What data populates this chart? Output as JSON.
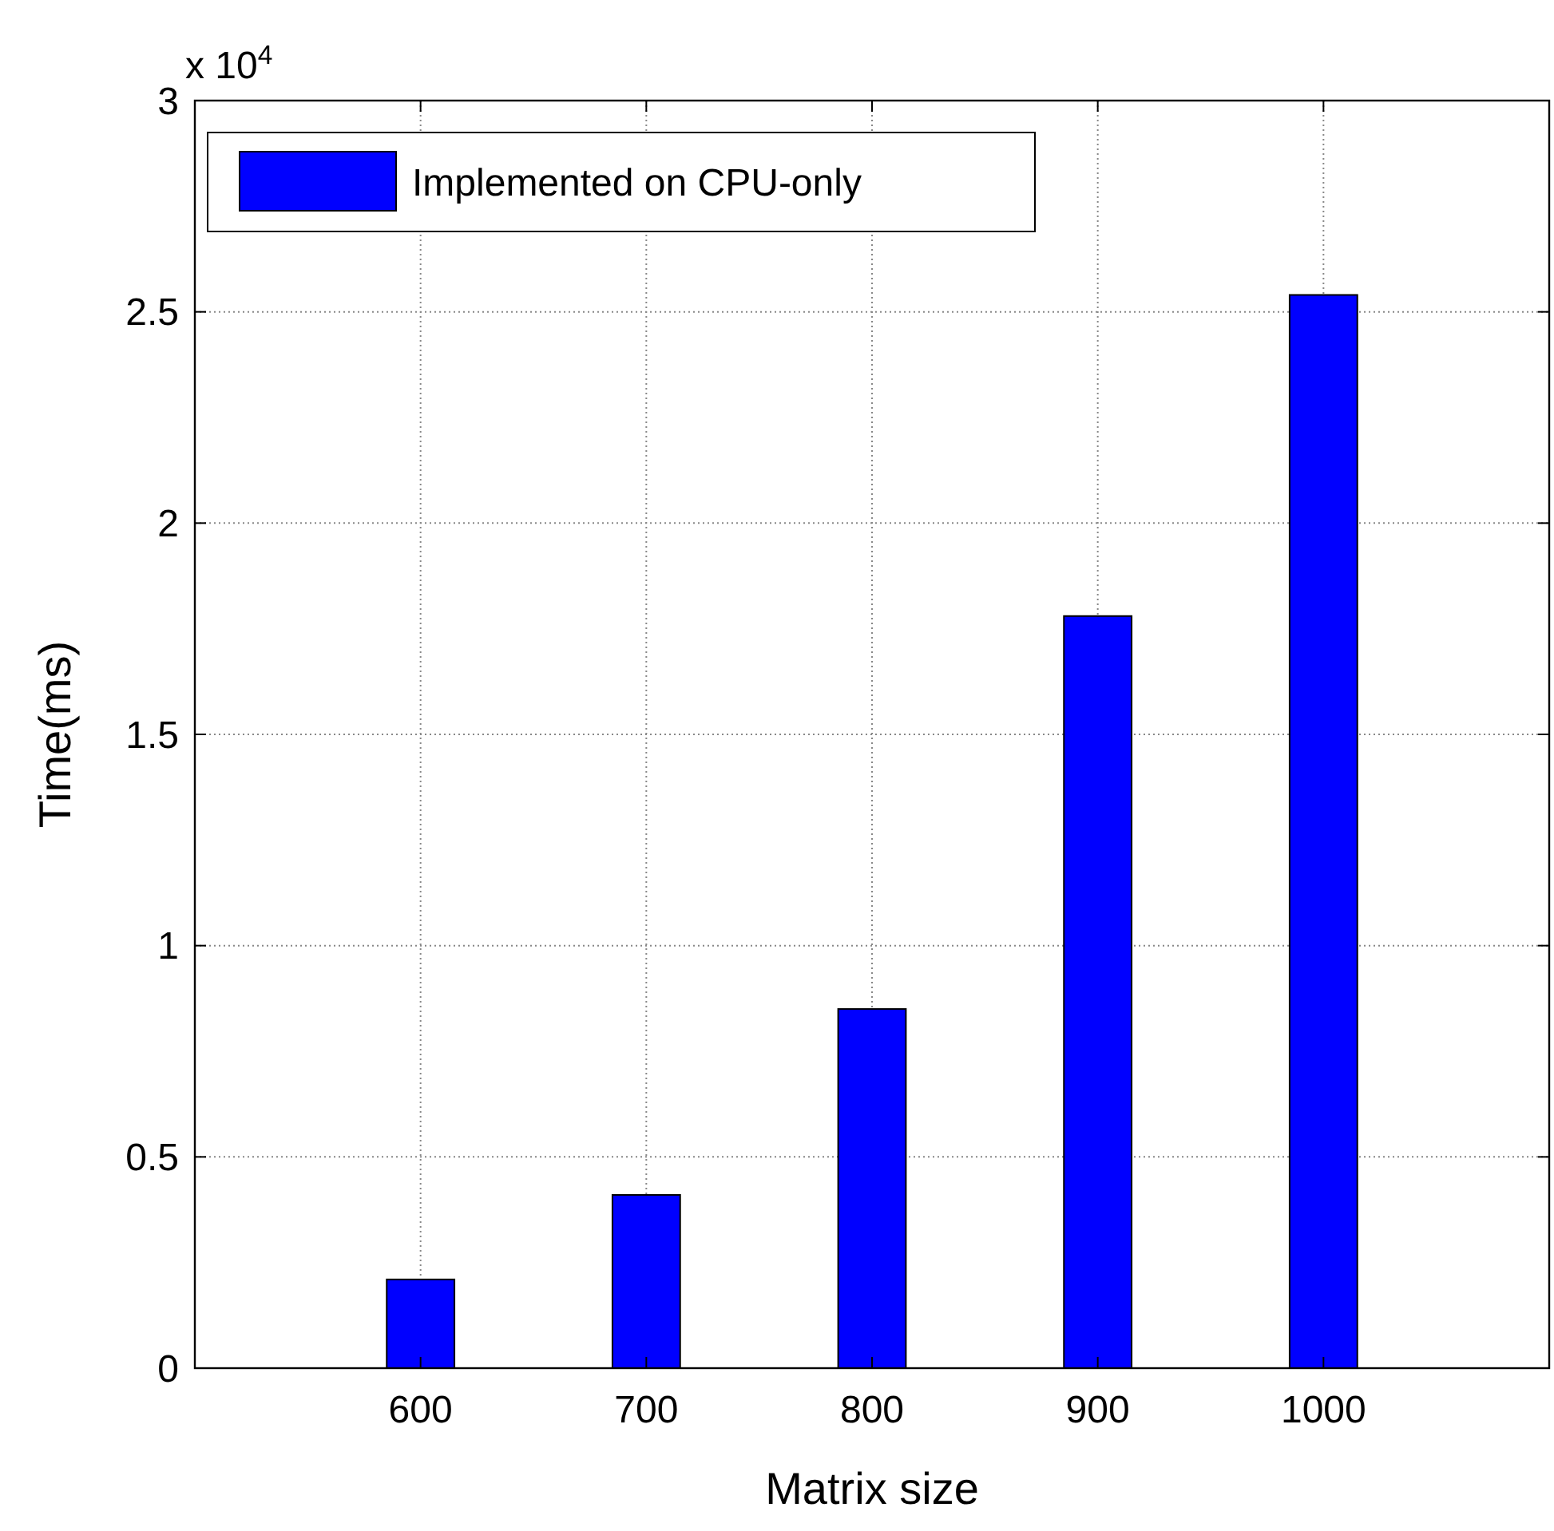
{
  "chart_data": {
    "type": "bar",
    "xlabel": "Matrix size",
    "ylabel": "Time(ms)",
    "annotations": [
      "x 10$^{4}$"
    ],
    "x": [
      600,
      700,
      800,
      900,
      1000
    ],
    "series": [
      {
        "name": "Implemented on CPU-only",
        "color": "#0000ff",
        "values": [
          0.21,
          0.41,
          0.85,
          1.78,
          2.54
        ]
      }
    ],
    "xlim": [
      500,
      1100
    ],
    "xticks": [
      600,
      700,
      800,
      900,
      1000
    ],
    "ylim": [
      0,
      3
    ],
    "yticks": [
      0,
      0.5,
      1,
      1.5,
      2,
      2.5,
      3
    ],
    "grid": true,
    "legend": "top left"
  }
}
